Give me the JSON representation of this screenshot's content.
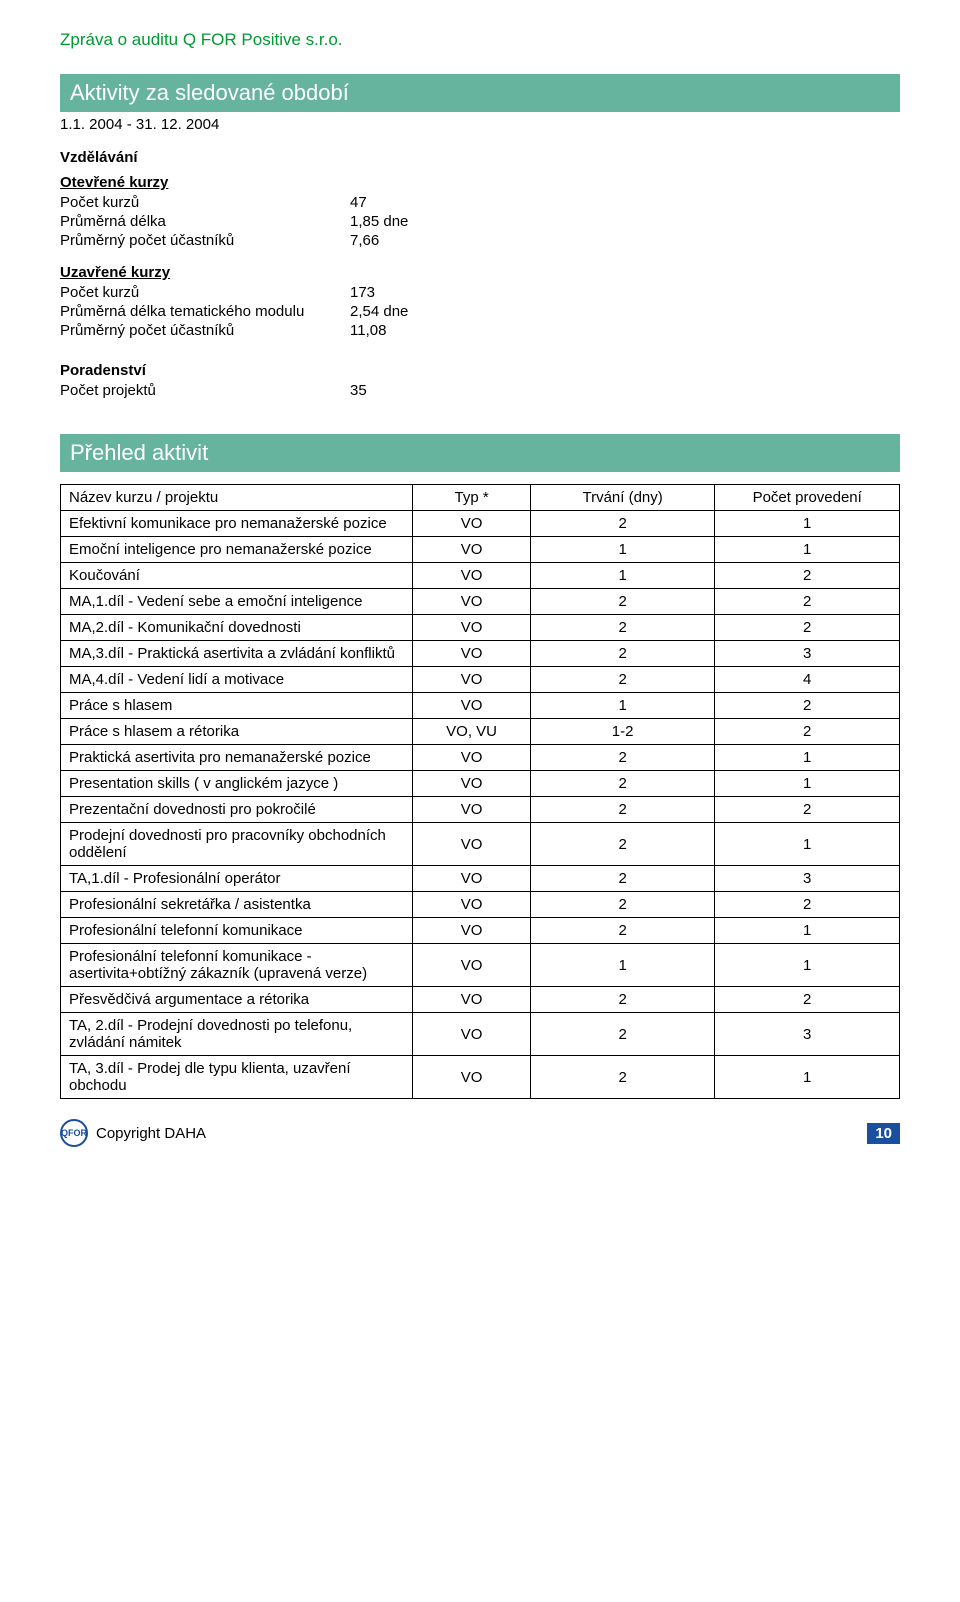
{
  "header": {
    "title": "Zpráva o auditu Q FOR Positive s.r.o."
  },
  "banner1": "Aktivity za sledované období",
  "period": "1.1. 2004 - 31. 12. 2004",
  "section_vzdelavani": "Vzdělávání",
  "open_courses": {
    "title": "Otevřené kurzy",
    "rows": [
      {
        "k": "Počet kurzů",
        "v": "47"
      },
      {
        "k": "Průměrná délka",
        "v": "1,85 dne"
      },
      {
        "k": "Průměrný počet účastníků",
        "v": "7,66"
      }
    ]
  },
  "closed_courses": {
    "title": "Uzavřené kurzy",
    "rows": [
      {
        "k": "Počet kurzů",
        "v": "173"
      },
      {
        "k": "Průměrná délka tematického modulu",
        "v": "2,54 dne"
      },
      {
        "k": "Průměrný počet účastníků",
        "v": "11,08"
      }
    ]
  },
  "poradenstvi": {
    "title": "Poradenství",
    "rows": [
      {
        "k": "Počet projektů",
        "v": "35"
      }
    ]
  },
  "banner2": "Přehled aktivit",
  "activities": {
    "columns": [
      "Název kurzu / projektu",
      "Typ *",
      "Trvání (dny)",
      "Počet provedení"
    ],
    "rows": [
      {
        "name": "Efektivní komunikace pro nemanažerské pozice",
        "type": "VO",
        "dur": "2",
        "cnt": "1"
      },
      {
        "name": "Emoční inteligence pro nemanažerské pozice",
        "type": "VO",
        "dur": "1",
        "cnt": "1"
      },
      {
        "name": "Koučování",
        "type": "VO",
        "dur": "1",
        "cnt": "2"
      },
      {
        "name": "MA,1.díl - Vedení sebe a emoční inteligence",
        "type": "VO",
        "dur": "2",
        "cnt": "2"
      },
      {
        "name": "MA,2.díl - Komunikační dovednosti",
        "type": "VO",
        "dur": "2",
        "cnt": "2"
      },
      {
        "name": "MA,3.díl - Praktická asertivita a zvládání konfliktů",
        "type": "VO",
        "dur": "2",
        "cnt": "3"
      },
      {
        "name": "MA,4.díl - Vedení lidí a motivace",
        "type": "VO",
        "dur": "2",
        "cnt": "4"
      },
      {
        "name": "Práce s hlasem",
        "type": "VO",
        "dur": "1",
        "cnt": "2"
      },
      {
        "name": "Práce s hlasem a rétorika",
        "type": "VO, VU",
        "dur": "1-2",
        "cnt": "2"
      },
      {
        "name": "Praktická asertivita pro nemanažerské pozice",
        "type": "VO",
        "dur": "2",
        "cnt": "1"
      },
      {
        "name": "Presentation skills ( v anglickém jazyce )",
        "type": "VO",
        "dur": "2",
        "cnt": "1"
      },
      {
        "name": "Prezentační dovednosti pro pokročilé",
        "type": "VO",
        "dur": "2",
        "cnt": "2"
      },
      {
        "name": "Prodejní dovednosti pro pracovníky obchodních oddělení",
        "type": "VO",
        "dur": "2",
        "cnt": "1"
      },
      {
        "name": "TA,1.díl - Profesionální operátor",
        "type": "VO",
        "dur": "2",
        "cnt": "3"
      },
      {
        "name": "Profesionální sekretářka / asistentka",
        "type": "VO",
        "dur": "2",
        "cnt": "2"
      },
      {
        "name": "Profesionální telefonní komunikace",
        "type": "VO",
        "dur": "2",
        "cnt": "1"
      },
      {
        "name": "Profesionální telefonní komunikace - asertivita+obtížný zákazník (upravená verze)",
        "type": "VO",
        "dur": "1",
        "cnt": "1"
      },
      {
        "name": "Přesvědčivá argumentace a rétorika",
        "type": "VO",
        "dur": "2",
        "cnt": "2"
      },
      {
        "name": "TA, 2.díl - Prodejní dovednosti po telefonu, zvládání námitek",
        "type": "VO",
        "dur": "2",
        "cnt": "3"
      },
      {
        "name": "TA, 3.díl - Prodej dle typu klienta, uzavření obchodu",
        "type": "VO",
        "dur": "2",
        "cnt": "1"
      }
    ]
  },
  "footer": {
    "logo_text": "QFOR",
    "copyright": "Copyright DAHA",
    "page": "10"
  },
  "style": {
    "colors": {
      "banner_bg": "#66b39e",
      "banner_fg": "#ffffff",
      "header_fg": "#009933",
      "table_border": "#000000",
      "badge_bg": "#1a4fa0",
      "badge_fg": "#ffffff",
      "body_bg": "#ffffff"
    }
  }
}
